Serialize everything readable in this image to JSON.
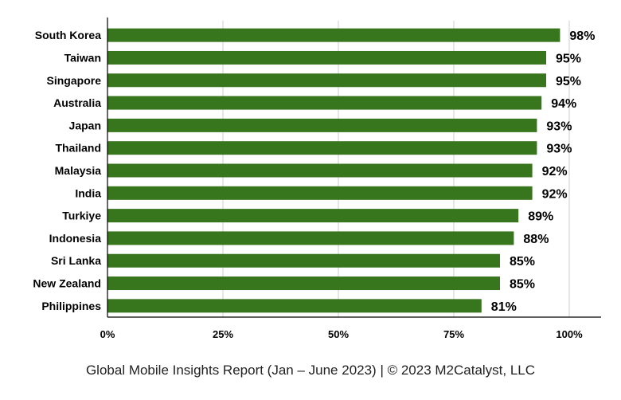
{
  "chart_data": {
    "type": "bar",
    "orientation": "horizontal",
    "categories": [
      "South Korea",
      "Taiwan",
      "Singapore",
      "Australia",
      "Japan",
      "Thailand",
      "Malaysia",
      "India",
      "Turkiye",
      "Indonesia",
      "Sri Lanka",
      "New Zealand",
      "Philippines"
    ],
    "values": [
      98,
      95,
      95,
      94,
      93,
      93,
      92,
      92,
      89,
      88,
      85,
      85,
      81
    ],
    "value_labels": [
      "98%",
      "95%",
      "95%",
      "94%",
      "93%",
      "93%",
      "92%",
      "92%",
      "89%",
      "88%",
      "85%",
      "85%",
      "81%"
    ],
    "xlim": [
      0,
      100
    ],
    "ticks": [
      0,
      25,
      50,
      75,
      100
    ],
    "tick_labels": [
      "0%",
      "25%",
      "50%",
      "75%",
      "100%"
    ],
    "grid": "vertical",
    "bar_color": "#38761d",
    "title": "",
    "xlabel": "",
    "ylabel": ""
  },
  "footer": {
    "text": "Global Mobile Insights Report (Jan – June 2023) | © 2023 M2Catalyst, LLC"
  }
}
